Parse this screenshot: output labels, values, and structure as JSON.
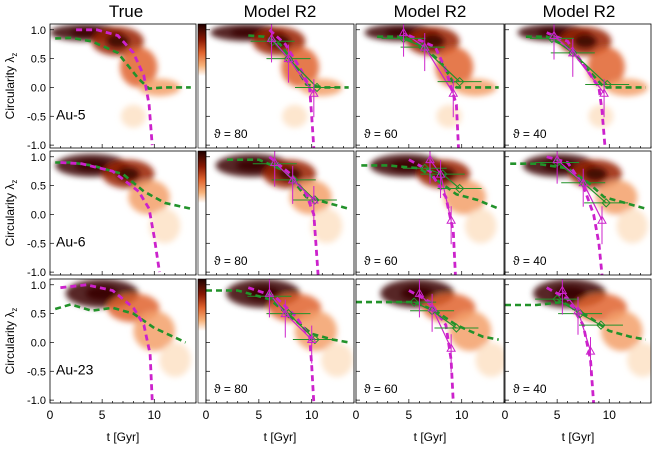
{
  "figure": {
    "column_titles": [
      "True",
      "Model R2",
      "Model R2",
      "Model R2"
    ],
    "ylabel": "Circularity λ",
    "ylabel_sub": "z",
    "xlabel": "t [Gyr]",
    "xticks": [
      "0",
      "5",
      "10"
    ],
    "yticks": [
      "1.0",
      "0.5",
      "0.0",
      "-0.5",
      "-1.0"
    ]
  },
  "chart_data": {
    "type": "heatmap",
    "layout": "3x4 grid of panels with colourbars after column 1",
    "xlim": [
      0,
      14
    ],
    "ylim": [
      -1.05,
      1.1
    ],
    "colors": {
      "true_trend": "#cc22cc",
      "model_trend": "#22922a",
      "heat_high": "#200000",
      "heat_mid": "#e0632e",
      "heat_low": "#fde2c6"
    },
    "rows": [
      {
        "galaxy": "Au-5",
        "true_magenta": [
          [
            2.5,
            1.0
          ],
          [
            4.5,
            1.0
          ],
          [
            6.5,
            0.9
          ],
          [
            8,
            0.6
          ],
          [
            9,
            0.2
          ],
          [
            9.5,
            -0.3
          ],
          [
            9.8,
            -1.0
          ]
        ],
        "true_green": [
          [
            0.5,
            0.85
          ],
          [
            2,
            0.86
          ],
          [
            4,
            0.8
          ],
          [
            6.5,
            0.6
          ],
          [
            8.5,
            0.15
          ],
          [
            9.5,
            -0.02
          ],
          [
            11,
            0.0
          ],
          [
            13.5,
            0.0
          ]
        ],
        "heat_blobs": [
          [
            3.5,
            0.95,
            3.5,
            0.15,
            1.0
          ],
          [
            6.5,
            0.8,
            2.5,
            0.25,
            0.7
          ],
          [
            8.5,
            0.35,
            1.8,
            0.35,
            0.5
          ],
          [
            10.5,
            0.0,
            2.0,
            0.15,
            0.35
          ],
          [
            8,
            -0.5,
            1.2,
            0.2,
            0.15
          ]
        ],
        "models": [
          {
            "theta": "ϑ = 80",
            "magenta": [
              [
                6,
                1.0
              ],
              [
                7.5,
                0.75
              ],
              [
                9,
                0.3
              ],
              [
                9.8,
                0.0
              ],
              [
                10,
                -0.5
              ],
              [
                10.2,
                -1.05
              ]
            ],
            "green": [
              [
                4,
                0.9
              ],
              [
                5.5,
                0.88
              ],
              [
                7,
                0.75
              ],
              [
                8,
                0.5
              ],
              [
                9.5,
                0.05
              ],
              [
                11,
                0.0
              ],
              [
                13.5,
                0.0
              ]
            ],
            "m_tri": [
              [
                6.2,
                0.85
              ],
              [
                7.8,
                0.5
              ],
              [
                10.2,
                -0.1
              ]
            ],
            "g_dia": [
              [
                6.3,
                0.8
              ],
              [
                7.8,
                0.5
              ],
              [
                10.5,
                0.0
              ]
            ]
          },
          {
            "theta": "ϑ = 60",
            "magenta": [
              [
                5,
                0.9
              ],
              [
                7.5,
                0.7
              ],
              [
                8.5,
                0.3
              ],
              [
                9.5,
                -0.3
              ],
              [
                9.7,
                -1.05
              ]
            ],
            "green": [
              [
                2,
                0.88
              ],
              [
                4,
                0.88
              ],
              [
                6,
                0.75
              ],
              [
                8,
                0.45
              ],
              [
                9.5,
                0.0
              ],
              [
                11,
                0.0
              ],
              [
                13.5,
                0.0
              ]
            ],
            "m_tri": [
              [
                4.5,
                0.95
              ],
              [
                6.5,
                0.7
              ],
              [
                9.2,
                -0.1
              ]
            ],
            "g_dia": [
              [
                4.5,
                0.85
              ],
              [
                6.3,
                0.7
              ],
              [
                9.8,
                0.1
              ]
            ]
          },
          {
            "theta": "ϑ = 40",
            "magenta": [
              [
                4,
                0.95
              ],
              [
                6,
                0.8
              ],
              [
                7.5,
                0.4
              ],
              [
                9,
                0.0
              ],
              [
                9.3,
                -0.4
              ],
              [
                9.6,
                -1.05
              ]
            ],
            "green": [
              [
                2,
                0.88
              ],
              [
                4,
                0.88
              ],
              [
                6,
                0.7
              ],
              [
                8,
                0.3
              ],
              [
                9.5,
                0.0
              ],
              [
                11,
                0.0
              ],
              [
                13.5,
                0.0
              ]
            ],
            "m_tri": [
              [
                4.7,
                0.9
              ],
              [
                6.5,
                0.6
              ],
              [
                9.5,
                -0.1
              ]
            ],
            "g_dia": [
              [
                4.5,
                0.85
              ],
              [
                6.5,
                0.6
              ],
              [
                9.8,
                0.05
              ]
            ]
          }
        ]
      },
      {
        "galaxy": "Au-6",
        "true_magenta": [
          [
            1,
            0.9
          ],
          [
            3,
            0.88
          ],
          [
            6,
            0.75
          ],
          [
            8.5,
            0.4
          ],
          [
            9.5,
            0.1
          ],
          [
            10,
            -0.4
          ],
          [
            10.5,
            -1.0
          ]
        ],
        "true_green": [
          [
            0.5,
            0.9
          ],
          [
            2,
            0.9
          ],
          [
            4,
            0.85
          ],
          [
            7,
            0.7
          ],
          [
            9,
            0.4
          ],
          [
            11,
            0.2
          ],
          [
            13.5,
            0.1
          ]
        ],
        "heat_blobs": [
          [
            4,
            0.85,
            3.5,
            0.2,
            1.0
          ],
          [
            7.5,
            0.7,
            2.5,
            0.25,
            0.7
          ],
          [
            9.5,
            0.3,
            2.0,
            0.3,
            0.45
          ],
          [
            11,
            -0.2,
            1.5,
            0.3,
            0.25
          ]
        ],
        "models": [
          {
            "theta": "ϑ = 80",
            "magenta": [
              [
                6,
                1.0
              ],
              [
                8,
                0.7
              ],
              [
                9.5,
                0.35
              ],
              [
                10.2,
                0.0
              ],
              [
                10.4,
                -0.5
              ],
              [
                10.6,
                -1.05
              ]
            ],
            "green": [
              [
                2,
                0.95
              ],
              [
                5,
                0.95
              ],
              [
                7.5,
                0.75
              ],
              [
                9.5,
                0.3
              ],
              [
                11.5,
                0.2
              ],
              [
                13.5,
                0.1
              ]
            ],
            "m_tri": [
              [
                6.5,
                0.9
              ],
              [
                8.2,
                0.6
              ],
              [
                10.2,
                0.25
              ]
            ],
            "g_dia": [
              [
                6.5,
                0.88
              ],
              [
                8.3,
                0.6
              ],
              [
                10.3,
                0.25
              ]
            ]
          },
          {
            "theta": "ϑ = 60",
            "magenta": [
              [
                5,
                0.95
              ],
              [
                7,
                0.75
              ],
              [
                8.5,
                0.3
              ],
              [
                9.2,
                -0.3
              ],
              [
                9.4,
                -1.05
              ]
            ],
            "green": [
              [
                0.5,
                0.85
              ],
              [
                3,
                0.85
              ],
              [
                6,
                0.8
              ],
              [
                8,
                0.55
              ],
              [
                9.5,
                0.35
              ],
              [
                11.5,
                0.25
              ],
              [
                13.5,
                0.1
              ]
            ],
            "m_tri": [
              [
                7,
                0.95
              ],
              [
                8,
                0.7
              ],
              [
                9,
                -0.1
              ]
            ],
            "g_dia": [
              [
                6.5,
                0.8
              ],
              [
                8.2,
                0.7
              ],
              [
                9.8,
                0.45
              ]
            ]
          },
          {
            "theta": "ϑ = 40",
            "magenta": [
              [
                4,
                1.0
              ],
              [
                6,
                0.9
              ],
              [
                7.5,
                0.5
              ],
              [
                8.5,
                0.0
              ],
              [
                9,
                -0.5
              ],
              [
                9.3,
                -1.05
              ]
            ],
            "green": [
              [
                0.5,
                0.88
              ],
              [
                3,
                0.88
              ],
              [
                6,
                0.8
              ],
              [
                8,
                0.55
              ],
              [
                9.5,
                0.3
              ],
              [
                11.5,
                0.2
              ],
              [
                13.5,
                0.1
              ]
            ],
            "m_tri": [
              [
                5,
                0.95
              ],
              [
                7.5,
                0.55
              ],
              [
                9.3,
                -0.1
              ]
            ],
            "g_dia": [
              [
                5,
                0.9
              ],
              [
                7.5,
                0.55
              ],
              [
                9.7,
                0.2
              ]
            ]
          }
        ]
      },
      {
        "galaxy": "Au-23",
        "true_magenta": [
          [
            1,
            0.95
          ],
          [
            3.5,
            1.0
          ],
          [
            6,
            0.9
          ],
          [
            8,
            0.6
          ],
          [
            9,
            0.3
          ],
          [
            9.6,
            -0.2
          ],
          [
            9.8,
            -1.0
          ]
        ],
        "true_green": [
          [
            0.5,
            0.58
          ],
          [
            2,
            0.66
          ],
          [
            4,
            0.55
          ],
          [
            6,
            0.6
          ],
          [
            8,
            0.5
          ],
          [
            10,
            0.25
          ],
          [
            13,
            0.0
          ]
        ],
        "heat_blobs": [
          [
            5,
            0.85,
            3.5,
            0.25,
            0.95
          ],
          [
            8,
            0.6,
            2.5,
            0.25,
            0.6
          ],
          [
            10,
            0.2,
            2.0,
            0.35,
            0.4
          ],
          [
            12,
            -0.3,
            1.5,
            0.3,
            0.2
          ]
        ],
        "models": [
          {
            "theta": "ϑ = 80",
            "magenta": [
              [
                4,
                0.95
              ],
              [
                6.5,
                0.8
              ],
              [
                8.5,
                0.45
              ],
              [
                9.8,
                0.1
              ],
              [
                10,
                -0.4
              ],
              [
                10.2,
                -1.05
              ]
            ],
            "green": [
              [
                0,
                0.9
              ],
              [
                3,
                0.9
              ],
              [
                6,
                0.75
              ],
              [
                8,
                0.45
              ],
              [
                10,
                0.15
              ],
              [
                12,
                0.05
              ],
              [
                13.5,
                0.0
              ]
            ],
            "m_tri": [
              [
                6,
                0.85
              ],
              [
                7.5,
                0.5
              ],
              [
                10,
                0.05
              ]
            ],
            "g_dia": [
              [
                6,
                0.8
              ],
              [
                7.8,
                0.5
              ],
              [
                10.3,
                0.05
              ]
            ]
          },
          {
            "theta": "ϑ = 60",
            "magenta": [
              [
                5,
                0.9
              ],
              [
                7,
                0.7
              ],
              [
                8.5,
                0.3
              ],
              [
                9,
                -0.3
              ],
              [
                9.2,
                -1.05
              ]
            ],
            "green": [
              [
                0,
                0.7
              ],
              [
                3,
                0.7
              ],
              [
                5.5,
                0.7
              ],
              [
                7.5,
                0.55
              ],
              [
                9.5,
                0.3
              ],
              [
                12,
                0.1
              ],
              [
                13.5,
                0.05
              ]
            ],
            "m_tri": [
              [
                6,
                0.85
              ],
              [
                7.2,
                0.6
              ],
              [
                9,
                -0.1
              ]
            ],
            "g_dia": [
              [
                5.5,
                0.7
              ],
              [
                7.2,
                0.55
              ],
              [
                9.5,
                0.25
              ]
            ]
          },
          {
            "theta": "ϑ = 40",
            "magenta": [
              [
                4,
                0.95
              ],
              [
                6,
                0.75
              ],
              [
                7.5,
                0.3
              ],
              [
                8.2,
                -0.3
              ],
              [
                8.5,
                -1.05
              ]
            ],
            "green": [
              [
                0,
                0.65
              ],
              [
                3,
                0.65
              ],
              [
                5.5,
                0.7
              ],
              [
                8,
                0.45
              ],
              [
                10,
                0.2
              ],
              [
                12,
                0.1
              ],
              [
                13.5,
                0.05
              ]
            ],
            "m_tri": [
              [
                5.5,
                0.9
              ],
              [
                7,
                0.55
              ],
              [
                8.2,
                -0.15
              ]
            ],
            "g_dia": [
              [
                5,
                0.75
              ],
              [
                7.2,
                0.5
              ],
              [
                9.2,
                0.3
              ]
            ]
          }
        ]
      }
    ]
  }
}
